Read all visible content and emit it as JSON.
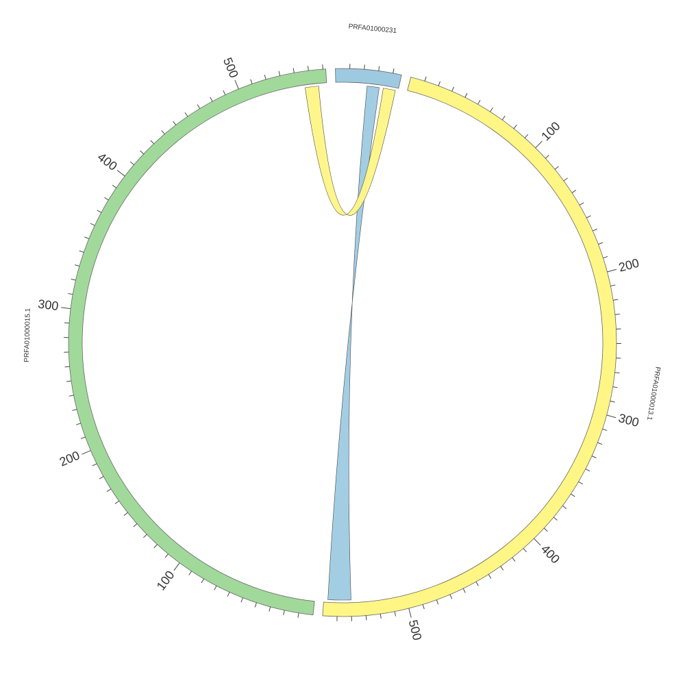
{
  "segments": [
    {
      "name": "PRFA01000231",
      "length": 46,
      "color": "#9ecae1",
      "ticks": []
    },
    {
      "name": "PRFA01000013.1",
      "length": 560,
      "color": "#fff685",
      "ticks": [
        100,
        200,
        300,
        400,
        500
      ]
    },
    {
      "name": "PRFA01000015.1",
      "length": 562,
      "color": "#a1d99b",
      "ticks": [
        100,
        200,
        300,
        400,
        500
      ]
    }
  ],
  "minor_ticks_every": 10,
  "links": [
    {
      "color": "#9ecae1",
      "source": {
        "segment": 0,
        "start": 23,
        "end": 32
      },
      "target": {
        "segment": 1,
        "start": 540,
        "end": 557
      }
    },
    {
      "color": "#fff685",
      "source": {
        "segment": 0,
        "start": 35,
        "end": 44
      },
      "target": {
        "segment": 2,
        "start": 546,
        "end": 556
      }
    }
  ]
}
